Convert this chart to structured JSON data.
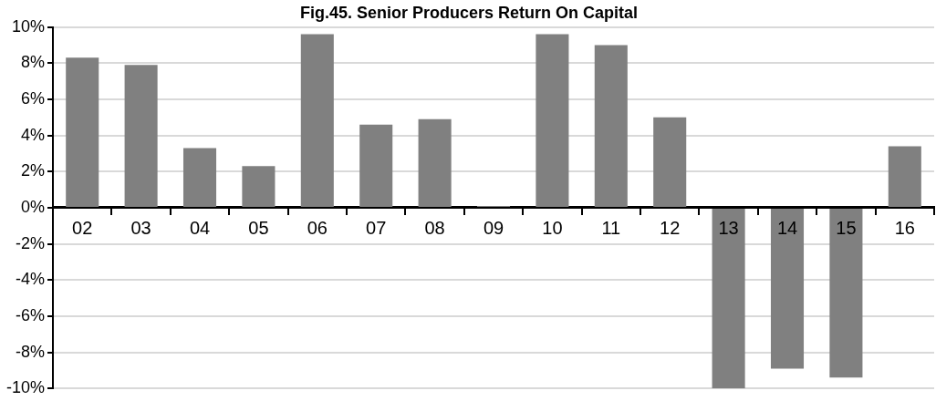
{
  "chart_data": {
    "type": "bar",
    "title": "Fig.45. Senior Producers Return On Capital",
    "categories": [
      "02",
      "03",
      "04",
      "05",
      "06",
      "07",
      "08",
      "09",
      "10",
      "11",
      "12",
      "13",
      "14",
      "15",
      "16"
    ],
    "values": [
      8.3,
      7.9,
      3.3,
      2.3,
      9.6,
      4.6,
      4.9,
      0.1,
      9.6,
      9.0,
      5.0,
      -10.0,
      -8.9,
      -9.4,
      3.4
    ],
    "color": "#808080",
    "ylim": [
      -10,
      10
    ],
    "yticks": [
      {
        "value": -10,
        "label": "-10%"
      },
      {
        "value": -8,
        "label": "-8%"
      },
      {
        "value": -6,
        "label": "-6%"
      },
      {
        "value": -4,
        "label": "-4%"
      },
      {
        "value": -2,
        "label": "-2%"
      },
      {
        "value": 0,
        "label": "0%"
      },
      {
        "value": 2,
        "label": "2%"
      },
      {
        "value": 4,
        "label": "4%"
      },
      {
        "value": 6,
        "label": "6%"
      },
      {
        "value": 8,
        "label": "8%"
      },
      {
        "value": 10,
        "label": "10%"
      }
    ],
    "grid": "y"
  }
}
